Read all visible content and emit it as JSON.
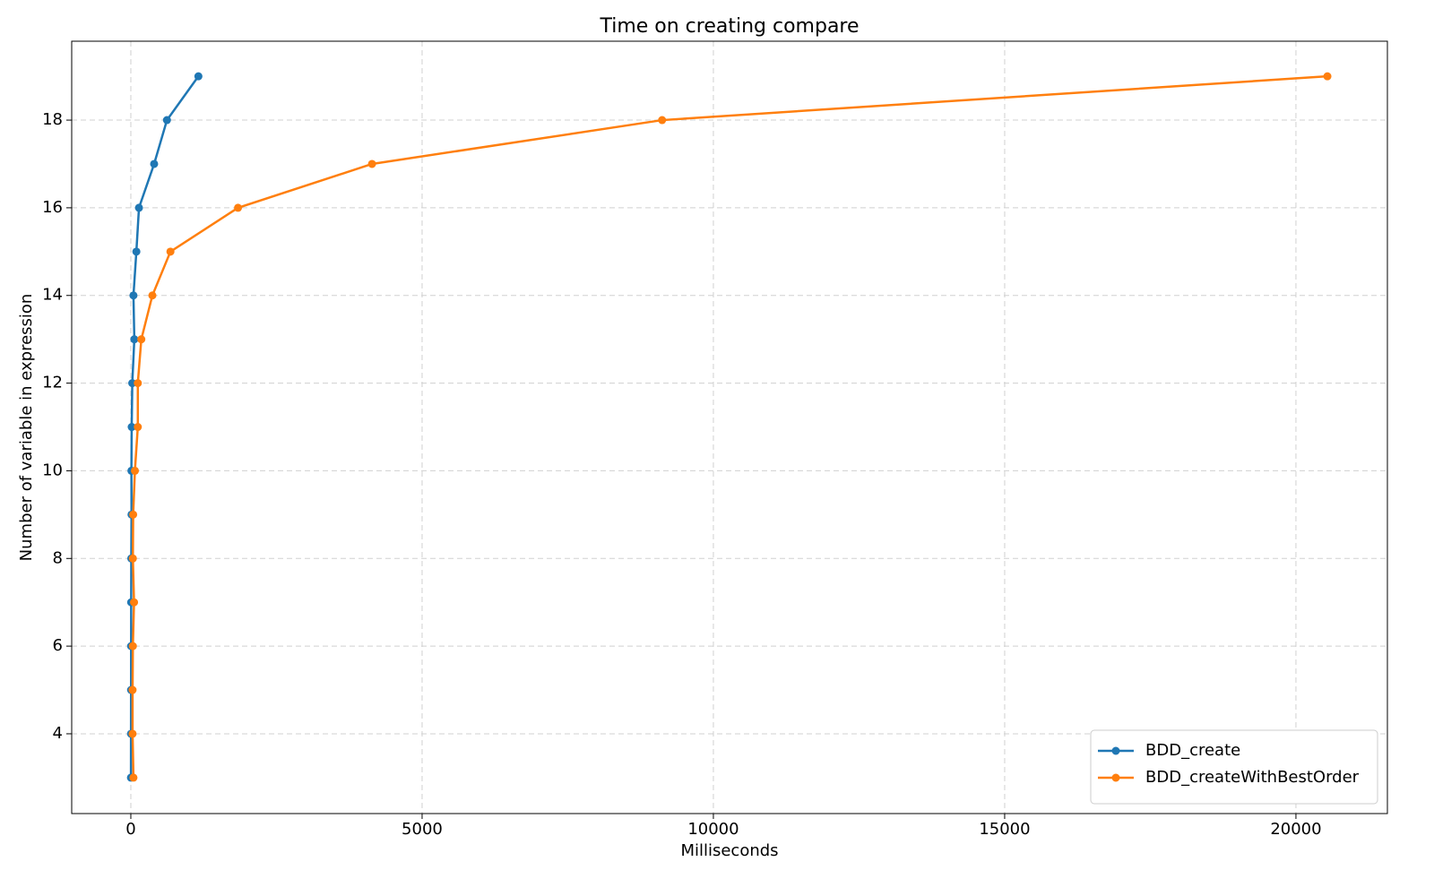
{
  "chart_data": {
    "type": "line",
    "title": "Time on creating compare",
    "x_label": "Milliseconds",
    "y_label": "Number of variable in expression",
    "series": [
      {
        "name": "BDD_create",
        "color": "#1f77b4",
        "x": [
          2,
          3,
          4,
          5,
          6,
          8,
          12,
          10,
          15,
          25,
          60,
          45,
          95,
          140,
          400,
          620,
          1160
        ],
        "values": [
          3,
          4,
          5,
          6,
          7,
          8,
          9,
          10,
          11,
          12,
          13,
          14,
          15,
          16,
          17,
          18,
          19
        ]
      },
      {
        "name": "BDD_createWithBestOrder",
        "color": "#ff7f0e",
        "x": [
          45,
          30,
          30,
          35,
          55,
          35,
          40,
          70,
          120,
          120,
          180,
          370,
          680,
          1840,
          4140,
          9120,
          20540
        ],
        "values": [
          3,
          4,
          5,
          6,
          7,
          8,
          9,
          10,
          11,
          12,
          13,
          14,
          15,
          16,
          17,
          18,
          19
        ]
      }
    ],
    "xlim": [
      -1015,
      21570
    ],
    "ylim": [
      2.18,
      19.8
    ],
    "xticks": [
      0,
      5000,
      10000,
      15000,
      20000
    ],
    "yticks": [
      4,
      6,
      8,
      10,
      12,
      14,
      16,
      18
    ],
    "grid": true,
    "legend": "lower right"
  }
}
